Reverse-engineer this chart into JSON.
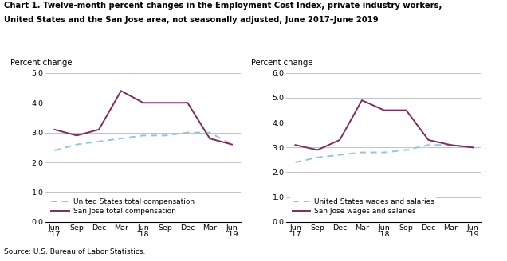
{
  "title_line1": "Chart 1. Twelve-month percent changes in the Employment Cost Index, private industry workers,",
  "title_line2": "United States and the San Jose area, not seasonally adjusted, June 2017–June 2019",
  "source": "Source: U.S. Bureau of Labor Statistics.",
  "x_labels_left": [
    "Jun\n'17",
    "Sep",
    "Dec",
    "Mar",
    "Jun\n'18",
    "Sep",
    "Dec",
    "Mar",
    "Jun\n'19"
  ],
  "x_labels_right": [
    "Jun\n'17",
    "Sep",
    "Dec",
    "Mar",
    "Jun\n'18",
    "Sep",
    "Dec",
    "Mar",
    "Jun\n'19"
  ],
  "x_positions": [
    0,
    1,
    2,
    3,
    4,
    5,
    6,
    7,
    8
  ],
  "left_chart": {
    "ylabel": "Percent change",
    "ylim": [
      0.0,
      5.0
    ],
    "yticks": [
      0.0,
      1.0,
      2.0,
      3.0,
      4.0,
      5.0
    ],
    "us_total_comp": [
      2.4,
      2.6,
      2.7,
      2.8,
      2.9,
      2.9,
      3.0,
      3.0,
      2.6
    ],
    "sj_total_comp": [
      3.1,
      2.9,
      3.1,
      4.4,
      4.0,
      4.0,
      4.0,
      2.8,
      2.6
    ],
    "legend_us": "United States total compensation",
    "legend_sj": "San Jose total compensation"
  },
  "right_chart": {
    "ylabel": "Percent change",
    "ylim": [
      0.0,
      6.0
    ],
    "yticks": [
      0.0,
      1.0,
      2.0,
      3.0,
      4.0,
      5.0,
      6.0
    ],
    "us_wages": [
      2.4,
      2.6,
      2.7,
      2.8,
      2.8,
      2.9,
      3.1,
      3.1,
      3.0
    ],
    "sj_wages": [
      3.1,
      2.9,
      3.3,
      4.9,
      4.5,
      4.5,
      3.3,
      3.1,
      3.0
    ],
    "legend_us": "United States wages and salaries",
    "legend_sj": "San Jose wages and salaries"
  },
  "us_color": "#92C5DE",
  "sj_color": "#7B2D5E",
  "linewidth": 1.4,
  "figsize": [
    6.36,
    3.28
  ],
  "dpi": 100
}
